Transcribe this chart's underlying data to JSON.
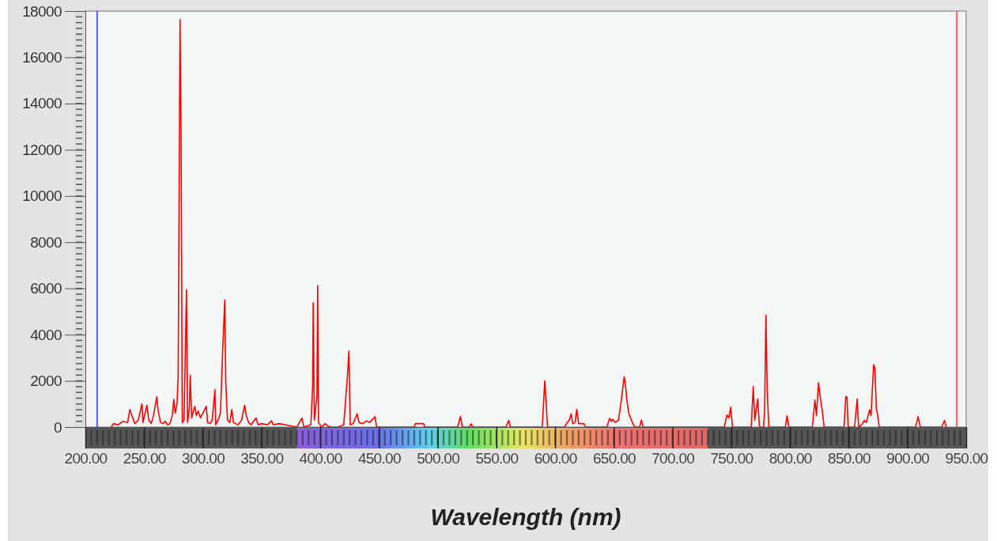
{
  "chart_data": {
    "type": "line",
    "xlabel": "Wavelength (nm)",
    "xlim": [
      200,
      950
    ],
    "xticks": [
      {
        "value": 200,
        "label": "200.00"
      },
      {
        "value": 250,
        "label": "250.00"
      },
      {
        "value": 300,
        "label": "300.00"
      },
      {
        "value": 350,
        "label": "350.00"
      },
      {
        "value": 400,
        "label": "400.00"
      },
      {
        "value": 450,
        "label": "450.00"
      },
      {
        "value": 500,
        "label": "500.00"
      },
      {
        "value": 550,
        "label": "550.00"
      },
      {
        "value": 600,
        "label": "600.00"
      },
      {
        "value": 650,
        "label": "650.00"
      },
      {
        "value": 700,
        "label": "700.00"
      },
      {
        "value": 750,
        "label": "750.00"
      },
      {
        "value": 800,
        "label": "800.00"
      },
      {
        "value": 850,
        "label": "850.00"
      },
      {
        "value": 900,
        "label": "900.00"
      },
      {
        "value": 950,
        "label": "950.00"
      }
    ],
    "ylim": [
      0,
      18000
    ],
    "yticks": [
      0,
      2000,
      4000,
      6000,
      8000,
      10000,
      12000,
      14000,
      16000,
      18000
    ],
    "grid": false,
    "marker": "none",
    "line_style": "solid",
    "ref_lines": [
      {
        "axis": "x",
        "value": 210,
        "color": "#4a5cff"
      },
      {
        "axis": "x",
        "value": 942,
        "color": "#ff6060"
      }
    ],
    "series": [
      {
        "color": "#ff0000",
        "x": [
          222,
          224,
          228,
          232,
          236,
          237.8,
          240,
          242,
          245,
          248.2,
          249,
          252.4,
          254,
          256,
          258,
          260.8,
          262,
          264,
          266,
          268,
          270,
          272,
          274,
          275.3,
          276.5,
          278,
          279,
          280.6,
          281.5,
          282.5,
          284,
          286.1,
          287,
          288.5,
          289.3,
          290.5,
          292,
          293.2,
          294.5,
          296,
          298,
          300,
          303,
          304,
          306,
          308,
          310.3,
          311,
          313,
          315,
          316.8,
          318.7,
          319.5,
          321,
          323,
          324.7,
          326,
          328,
          330,
          333,
          335.6,
          337,
          339,
          341,
          345.3,
          347,
          350,
          355,
          358.5,
          360,
          365,
          370,
          375,
          380,
          384.4,
          386,
          392,
          393.5,
          394,
          395,
          397.2,
          397.8,
          398.5,
          401,
          404,
          408,
          415,
          420,
          423.2,
          424.4,
          425.5,
          428,
          431.4,
          433,
          436,
          439.4,
          442,
          446.6,
          448,
          480,
          481,
          488,
          489,
          517,
          519.4,
          521,
          527,
          528.4,
          530,
          558,
          560.4,
          562,
          589,
          591.2,
          592.3,
          593.5,
          608,
          609.9,
          612,
          613.7,
          615,
          617,
          618.4,
          620,
          624.5,
          626,
          644,
          646.4,
          648,
          649.3,
          651,
          654,
          656,
          658.8,
          659.9,
          661,
          662.8,
          666.2,
          668,
          672,
          673.4,
          675,
          744,
          746.2,
          748,
          749.5,
          751,
          767,
          768.7,
          770,
          772.5,
          774,
          777.5,
          778.4,
          779.5,
          780.6,
          782,
          796,
          797.5,
          799,
          819,
          821.2,
          822.5,
          824.3,
          825.5,
          827.7,
          829,
          846,
          847.5,
          848.5,
          849.5,
          855,
          857.2,
          858.5,
          861,
          863.3,
          865,
          867.8,
          869,
          871.2,
          872.3,
          873.5,
          874.5,
          876,
          907,
          909,
          911,
          929,
          931.6,
          933
        ],
        "values": [
          0,
          150,
          100,
          250,
          200,
          760,
          450,
          150,
          300,
          1010,
          200,
          950,
          300,
          150,
          500,
          1310,
          700,
          200,
          150,
          250,
          100,
          150,
          500,
          1200,
          600,
          1000,
          2120,
          17630,
          12590,
          200,
          300,
          5940,
          200,
          800,
          2240,
          400,
          700,
          900,
          500,
          700,
          400,
          600,
          900,
          200,
          150,
          300,
          1620,
          100,
          300,
          600,
          3170,
          5500,
          2000,
          300,
          200,
          760,
          200,
          150,
          100,
          300,
          950,
          500,
          200,
          100,
          390,
          100,
          150,
          100,
          270,
          100,
          150,
          100,
          50,
          0,
          390,
          0,
          100,
          1750,
          5380,
          300,
          1380,
          6120,
          200,
          0,
          150,
          0,
          0,
          100,
          2240,
          3290,
          100,
          150,
          580,
          200,
          150,
          270,
          200,
          450,
          0,
          0,
          150,
          150,
          0,
          0,
          460,
          0,
          0,
          140,
          0,
          0,
          290,
          0,
          0,
          2010,
          1090,
          0,
          0,
          170,
          300,
          570,
          150,
          200,
          770,
          150,
          150,
          0,
          0,
          380,
          250,
          340,
          200,
          300,
          1030,
          2180,
          1840,
          1200,
          580,
          150,
          0,
          0,
          310,
          0,
          0,
          520,
          400,
          860,
          0,
          0,
          1750,
          300,
          1210,
          0,
          0,
          800,
          4850,
          1550,
          0,
          0,
          490,
          0,
          0,
          1170,
          500,
          1920,
          1380,
          630,
          0,
          0,
          1320,
          1300,
          0,
          0,
          1210,
          0,
          100,
          290,
          200,
          750,
          500,
          2700,
          2530,
          800,
          570,
          0,
          0,
          460,
          0,
          0,
          290,
          0
        ]
      }
    ]
  }
}
